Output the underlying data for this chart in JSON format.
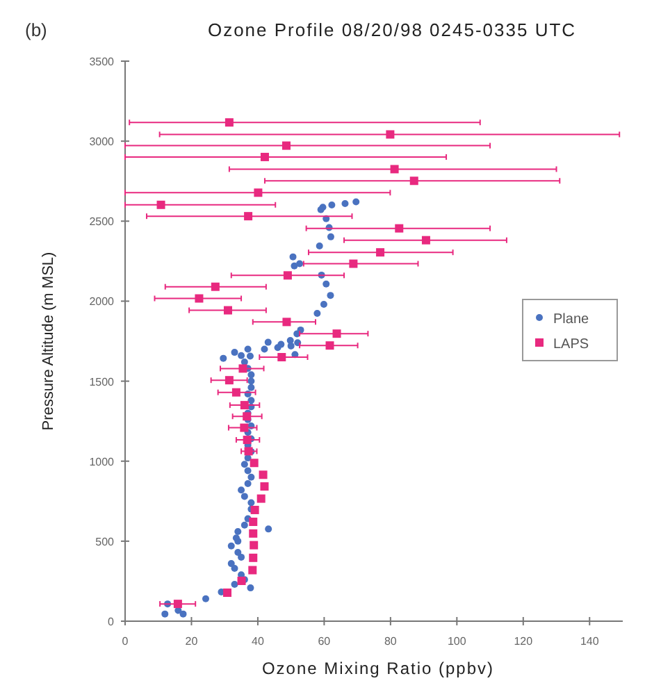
{
  "chart_data": {
    "type": "scatter",
    "title": "Ozone Profile 08/20/98 0245-0335 UTC",
    "xlabel": "Ozone Mixing Ratio (ppbv)",
    "ylabel": "Pressure Altitude (m MSL)",
    "annotations": [
      "(b)"
    ],
    "xlim": [
      0,
      150
    ],
    "ylim": [
      0,
      3500
    ],
    "xticks": [
      0,
      20,
      40,
      60,
      80,
      100,
      120,
      140
    ],
    "yticks": [
      0,
      500,
      1000,
      1500,
      2000,
      2500,
      3000,
      3500
    ],
    "grid": false,
    "legend": "right",
    "series": [
      {
        "name": "Plane",
        "color": "#4a72c0",
        "marker": "circle",
        "x": [
          12,
          17.5,
          12.8,
          16,
          24.3,
          29,
          37.8,
          33,
          36,
          35,
          33,
          32,
          35,
          34,
          32,
          34,
          33.5,
          34,
          36,
          37,
          38,
          38,
          36,
          35,
          37,
          38,
          37,
          36,
          37,
          38,
          37,
          38,
          37,
          38,
          37,
          37,
          38,
          38,
          37,
          38,
          38,
          38,
          37,
          36,
          35,
          33,
          37,
          42,
          46,
          50,
          52,
          47,
          43.2,
          29.6,
          37.7,
          43.1,
          51.2,
          49.8,
          51.8,
          52.9,
          57.9,
          59.9,
          61.9,
          60.6,
          59.2,
          52.6,
          50.6,
          51,
          58.6,
          62,
          61.5,
          60.6,
          59.6,
          62.3,
          66.3,
          69.6,
          59
        ],
        "values": [
          45,
          45,
          108,
          67,
          140,
          182,
          208,
          230,
          260,
          290,
          330,
          360,
          400,
          430,
          470,
          500,
          520,
          560,
          600,
          640,
          700,
          740,
          780,
          820,
          860,
          900,
          940,
          980,
          1020,
          1060,
          1100,
          1140,
          1180,
          1220,
          1260,
          1300,
          1340,
          1380,
          1420,
          1460,
          1500,
          1540,
          1580,
          1620,
          1660,
          1680,
          1700,
          1700,
          1710,
          1720,
          1740,
          1730,
          576,
          1643,
          1657,
          1743,
          1666,
          1754,
          1796,
          1820,
          1924,
          1980,
          2036,
          2107,
          2163,
          2234,
          2277,
          2220,
          2345,
          2402,
          2460,
          2515,
          2587,
          2601,
          2610,
          2621,
          2572
        ]
      },
      {
        "name": "LAPS",
        "color": "#e8297f",
        "marker": "square",
        "x": [
          31.4,
          79.9,
          48.6,
          42.1,
          81.2,
          87.1,
          40.1,
          10.8,
          37.1,
          82.6,
          90.7,
          76.9,
          68.8,
          49,
          27.2,
          22.3,
          31,
          48.7,
          63.8,
          61.7,
          47.2,
          35.5,
          31.4,
          33.5,
          36,
          36.7,
          35.9,
          36.8,
          37.2,
          38.9,
          41.6,
          42,
          41,
          39.1,
          38.6,
          38.6,
          38.8,
          38.6,
          38.4,
          35.1,
          30.8,
          15.9
        ],
        "values": [
          3117,
          3042,
          2972,
          2901,
          2825,
          2752,
          2678,
          2602,
          2531,
          2455,
          2381,
          2305,
          2234,
          2161,
          2090,
          2017,
          1943,
          1870,
          1797,
          1723,
          1650,
          1579,
          1506,
          1430,
          1350,
          1280,
          1209,
          1133,
          1062,
          989,
          915,
          842,
          766,
          695,
          621,
          548,
          475,
          396,
          319,
          252,
          178,
          108
        ],
        "xerrors": [
          [
            1.3,
            107
          ],
          [
            10.4,
            149
          ],
          [
            0,
            110
          ],
          [
            0,
            96.8
          ],
          [
            31.4,
            130
          ],
          [
            42.1,
            131
          ],
          [
            0,
            79.9
          ],
          [
            0,
            45.3
          ],
          [
            6.5,
            68.4
          ],
          [
            54.6,
            110
          ],
          [
            66,
            115
          ],
          [
            55.3,
            98.8
          ],
          [
            53.8,
            88.3
          ],
          [
            32,
            66
          ],
          [
            12.1,
            42.5
          ],
          [
            8.9,
            35
          ],
          [
            19.3,
            42.5
          ],
          [
            38.5,
            57.4
          ],
          [
            52.6,
            73.2
          ],
          [
            52.6,
            70.1
          ],
          [
            40.5,
            55
          ],
          [
            28.7,
            41.8
          ],
          [
            25.9,
            36.8
          ],
          [
            28,
            39.3
          ],
          [
            31.6,
            40.5
          ],
          [
            32.4,
            41.2
          ],
          [
            31.2,
            39.7
          ],
          [
            33.5,
            40.5
          ],
          [
            35,
            39.7
          ],
          null,
          null,
          null,
          null,
          null,
          null,
          null,
          null,
          null,
          null,
          null,
          null,
          [
            10.5,
            21.2
          ]
        ]
      }
    ]
  }
}
